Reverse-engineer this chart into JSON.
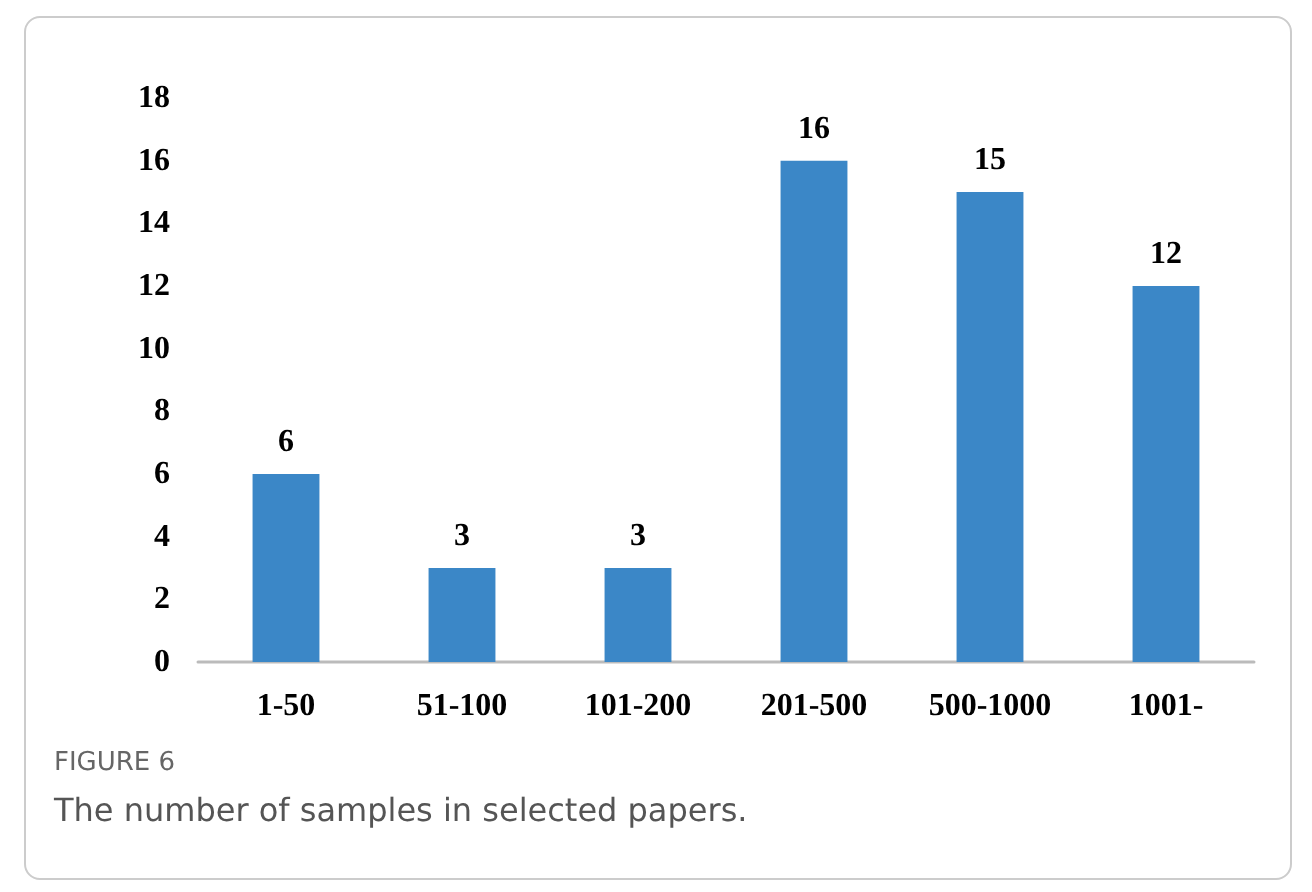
{
  "chart_data": {
    "type": "bar",
    "categories": [
      "1-50",
      "51-100",
      "101-200",
      "201-500",
      "500-1000",
      "1001-"
    ],
    "values": [
      6,
      3,
      3,
      16,
      15,
      12
    ],
    "color": "#3b87c7",
    "ylim": [
      0,
      18
    ],
    "yticks": [
      0,
      2,
      4,
      6,
      8,
      10,
      12,
      14,
      16,
      18
    ],
    "grid": false,
    "data_labels": true,
    "annotations": [
      "FIGURE 6",
      "The number of samples in selected papers."
    ]
  }
}
